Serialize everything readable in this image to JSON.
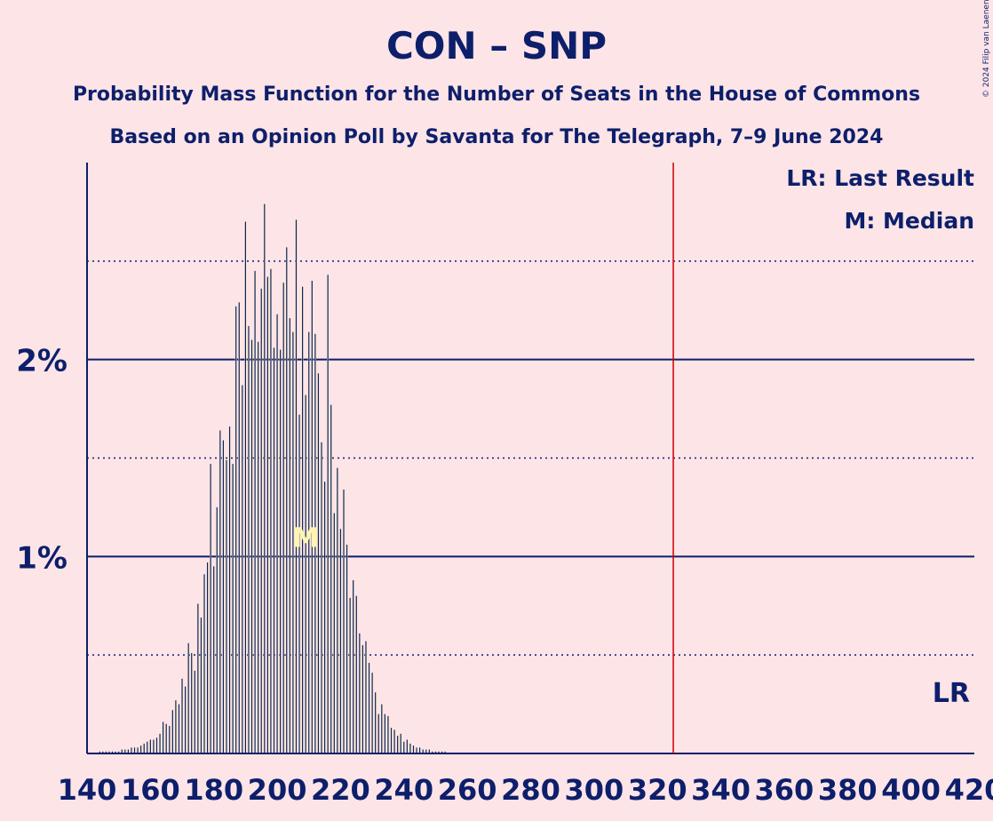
{
  "chart_data": {
    "type": "bar",
    "title": "CON – SNP",
    "subtitle1": "Probability Mass Function for the Number of Seats in the House of Commons",
    "subtitle2": "Based on an Opinion Poll by Savanta for The Telegraph, 7–9 June 2024",
    "credit": "© 2024 Filip van Laenen",
    "legend": {
      "last_result": "LR: Last Result",
      "median": "M: Median",
      "position": "top-right"
    },
    "lr_label": "LR",
    "median_label": "M",
    "last_result_seat": 325,
    "median_seat": 209,
    "xlim": [
      140,
      420
    ],
    "ylim": [
      0,
      3.0
    ],
    "x_ticks": [
      "140",
      "160",
      "180",
      "200",
      "220",
      "240",
      "260",
      "280",
      "300",
      "320",
      "340",
      "360",
      "380",
      "400",
      "420"
    ],
    "y_tick_labels": [
      {
        "value": 1,
        "label": "1%"
      },
      {
        "value": 2,
        "label": "2%"
      }
    ],
    "y_dotted_lines": [
      0.5,
      1.5,
      2.5
    ],
    "seat_start": 144,
    "colors": {
      "background": "#fde4e7",
      "primary": "#0d1f6b",
      "bar_highlight": "#fff5b0",
      "last_result_line": "#cc0000"
    },
    "values": [
      0.01,
      0.01,
      0.01,
      0.01,
      0.01,
      0.01,
      0.01,
      0.02,
      0.02,
      0.02,
      0.03,
      0.03,
      0.03,
      0.04,
      0.05,
      0.06,
      0.07,
      0.07,
      0.08,
      0.1,
      0.16,
      0.15,
      0.14,
      0.22,
      0.27,
      0.25,
      0.38,
      0.34,
      0.56,
      0.51,
      0.42,
      0.76,
      0.69,
      0.91,
      0.97,
      1.47,
      0.95,
      1.25,
      1.64,
      1.59,
      1.49,
      1.66,
      1.47,
      2.27,
      2.29,
      1.87,
      2.7,
      2.17,
      2.1,
      2.45,
      2.09,
      2.36,
      2.79,
      2.42,
      2.46,
      2.06,
      2.23,
      2.05,
      2.39,
      2.57,
      2.21,
      2.14,
      2.71,
      1.72,
      2.37,
      1.82,
      2.14,
      2.4,
      2.13,
      1.93,
      1.58,
      1.38,
      2.43,
      1.77,
      1.22,
      1.45,
      1.14,
      1.34,
      1.06,
      0.79,
      0.88,
      0.8,
      0.61,
      0.55,
      0.57,
      0.46,
      0.41,
      0.31,
      0.2,
      0.25,
      0.2,
      0.19,
      0.13,
      0.12,
      0.09,
      0.1,
      0.06,
      0.07,
      0.05,
      0.04,
      0.03,
      0.03,
      0.02,
      0.02,
      0.02,
      0.01,
      0.01,
      0.01,
      0.01,
      0.01
    ]
  }
}
